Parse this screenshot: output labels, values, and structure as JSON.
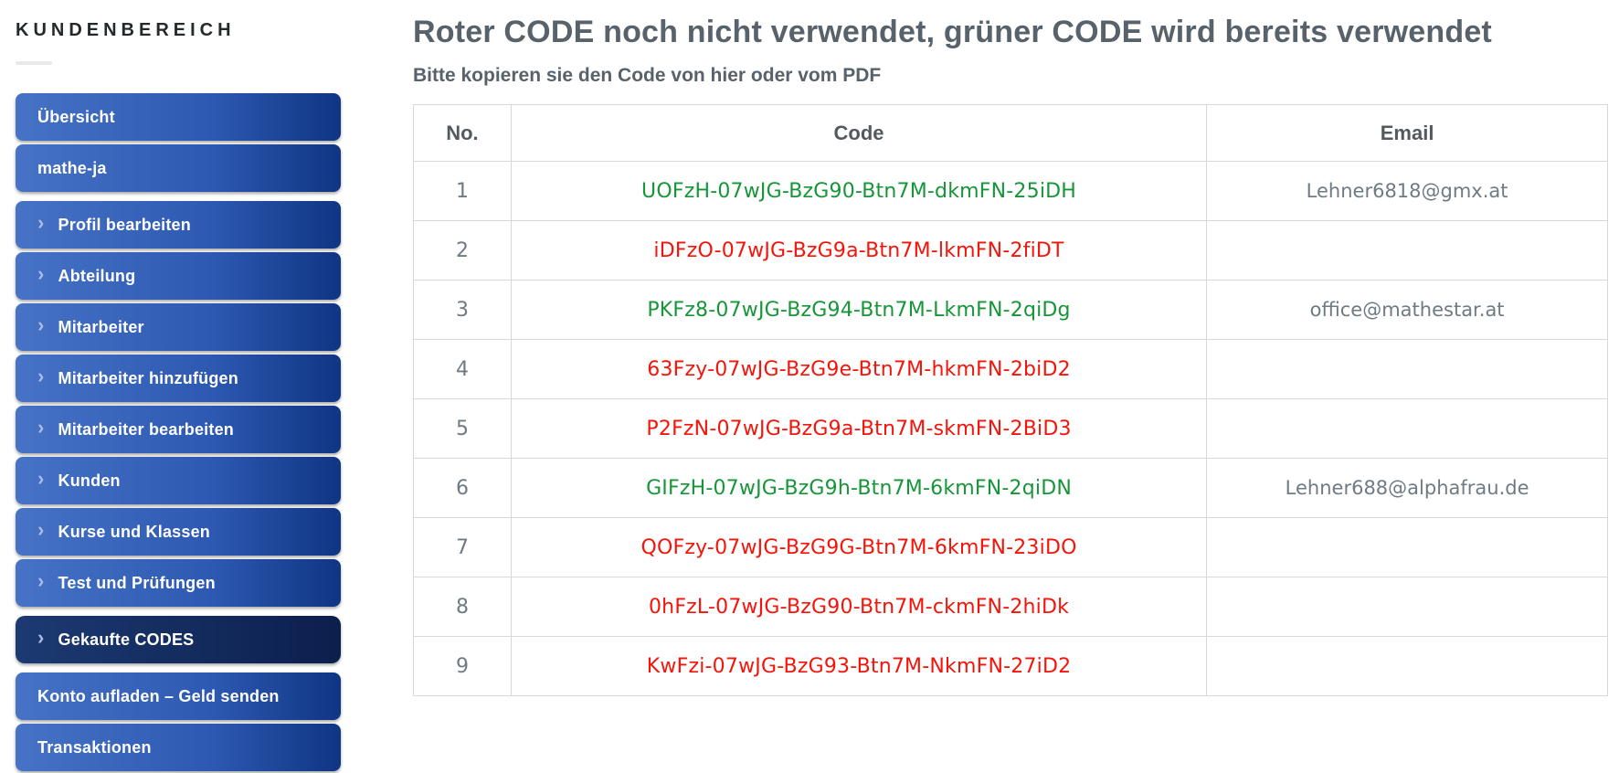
{
  "brand": "KUNDENBEREICH",
  "sidebar": {
    "items": [
      {
        "label": "Übersicht",
        "chevron": false,
        "active": false,
        "gap": false
      },
      {
        "label": "mathe-ja",
        "chevron": false,
        "active": false,
        "gap": false
      },
      {
        "label": "Profil bearbeiten",
        "chevron": true,
        "active": false,
        "gap": true
      },
      {
        "label": "Abteilung",
        "chevron": true,
        "active": false,
        "gap": false
      },
      {
        "label": "Mitarbeiter",
        "chevron": true,
        "active": false,
        "gap": false
      },
      {
        "label": "Mitarbeiter hinzufügen",
        "chevron": true,
        "active": false,
        "gap": false
      },
      {
        "label": "Mitarbeiter bearbeiten",
        "chevron": true,
        "active": false,
        "gap": false
      },
      {
        "label": "Kunden",
        "chevron": true,
        "active": false,
        "gap": false
      },
      {
        "label": "Kurse und Klassen",
        "chevron": true,
        "active": false,
        "gap": false
      },
      {
        "label": "Test und Prüfungen",
        "chevron": true,
        "active": false,
        "gap": false
      },
      {
        "label": "Gekaufte CODES",
        "chevron": true,
        "active": true,
        "gap": true
      },
      {
        "label": "Konto aufladen – Geld senden",
        "chevron": false,
        "active": false,
        "gap": true
      },
      {
        "label": "Transaktionen",
        "chevron": false,
        "active": false,
        "gap": false
      }
    ]
  },
  "main": {
    "title": "Roter CODE noch nicht verwendet, grüner CODE wird bereits verwendet",
    "subtitle": "Bitte kopieren sie den Code von hier oder vom PDF",
    "table": {
      "columns": [
        "No.",
        "Code",
        "Email"
      ],
      "rows": [
        {
          "no": "1",
          "code": "UOFzH-07wJG-BzG90-Btn7M-dkmFN-25iDH",
          "status": "used",
          "email": "Lehner6818@gmx.at"
        },
        {
          "no": "2",
          "code": "iDFzO-07wJG-BzG9a-Btn7M-lkmFN-2fiDT",
          "status": "unused",
          "email": ""
        },
        {
          "no": "3",
          "code": "PKFz8-07wJG-BzG94-Btn7M-LkmFN-2qiDg",
          "status": "used",
          "email": "office@mathestar.at"
        },
        {
          "no": "4",
          "code": "63Fzy-07wJG-BzG9e-Btn7M-hkmFN-2biD2",
          "status": "unused",
          "email": ""
        },
        {
          "no": "5",
          "code": "P2FzN-07wJG-BzG9a-Btn7M-skmFN-2BiD3",
          "status": "unused",
          "email": ""
        },
        {
          "no": "6",
          "code": "GIFzH-07wJG-BzG9h-Btn7M-6kmFN-2qiDN",
          "status": "used",
          "email": "Lehner688@alphafrau.de"
        },
        {
          "no": "7",
          "code": "QOFzy-07wJG-BzG9G-Btn7M-6kmFN-23iDO",
          "status": "unused",
          "email": ""
        },
        {
          "no": "8",
          "code": "0hFzL-07wJG-BzG90-Btn7M-ckmFN-2hiDk",
          "status": "unused",
          "email": ""
        },
        {
          "no": "9",
          "code": "KwFzi-07wJG-BzG93-Btn7M-NkmFN-27iD2",
          "status": "unused",
          "email": ""
        }
      ]
    }
  },
  "colors": {
    "code_used_green": "#169638",
    "code_unused_red": "#f4140a",
    "nav_gradient_start": "#4673c5",
    "nav_gradient_end": "#0f3583",
    "nav_active_start": "#1c3a72",
    "nav_active_end": "#0c1f4d",
    "heading_text": "#58626a",
    "muted_text": "#6e7b83",
    "table_border": "#d8d8d8"
  },
  "icons": {
    "chevron_right": "›"
  }
}
